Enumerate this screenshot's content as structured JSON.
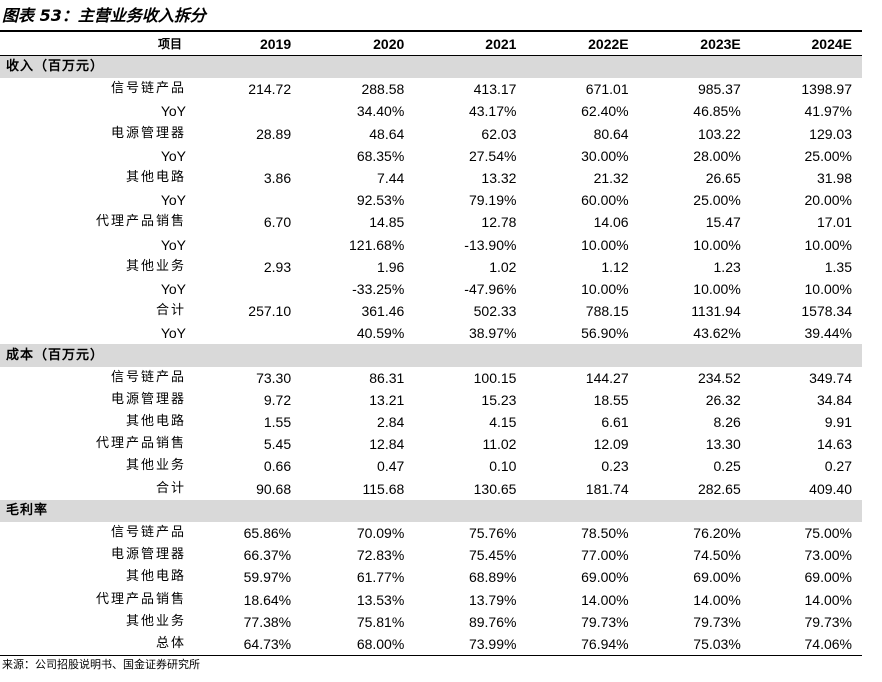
{
  "title": "图表 53：主营业务收入拆分",
  "header": [
    "项目",
    "2019",
    "2020",
    "2021",
    "2022E",
    "2023E",
    "2024E"
  ],
  "sections": [
    {
      "name": "收入（百万元）",
      "rows": [
        {
          "label": "信号链产品",
          "values": [
            "214.72",
            "288.58",
            "413.17",
            "671.01",
            "985.37",
            "1398.97"
          ]
        },
        {
          "label": "YoY",
          "values": [
            "",
            "34.40%",
            "43.17%",
            "62.40%",
            "46.85%",
            "41.97%"
          ]
        },
        {
          "label": "电源管理器",
          "values": [
            "28.89",
            "48.64",
            "62.03",
            "80.64",
            "103.22",
            "129.03"
          ]
        },
        {
          "label": "YoY",
          "values": [
            "",
            "68.35%",
            "27.54%",
            "30.00%",
            "28.00%",
            "25.00%"
          ]
        },
        {
          "label": "其他电路",
          "values": [
            "3.86",
            "7.44",
            "13.32",
            "21.32",
            "26.65",
            "31.98"
          ]
        },
        {
          "label": "YoY",
          "values": [
            "",
            "92.53%",
            "79.19%",
            "60.00%",
            "25.00%",
            "20.00%"
          ]
        },
        {
          "label": "代理产品销售",
          "values": [
            "6.70",
            "14.85",
            "12.78",
            "14.06",
            "15.47",
            "17.01"
          ]
        },
        {
          "label": "YoY",
          "values": [
            "",
            "121.68%",
            "-13.90%",
            "10.00%",
            "10.00%",
            "10.00%"
          ]
        },
        {
          "label": "其他业务",
          "values": [
            "2.93",
            "1.96",
            "1.02",
            "1.12",
            "1.23",
            "1.35"
          ]
        },
        {
          "label": "YoY",
          "values": [
            "",
            "-33.25%",
            "-47.96%",
            "10.00%",
            "10.00%",
            "10.00%"
          ]
        },
        {
          "label": "合计",
          "values": [
            "257.10",
            "361.46",
            "502.33",
            "788.15",
            "1131.94",
            "1578.34"
          ]
        },
        {
          "label": "YoY",
          "values": [
            "",
            "40.59%",
            "38.97%",
            "56.90%",
            "43.62%",
            "39.44%"
          ]
        }
      ]
    },
    {
      "name": "成本（百万元）",
      "rows": [
        {
          "label": "信号链产品",
          "values": [
            "73.30",
            "86.31",
            "100.15",
            "144.27",
            "234.52",
            "349.74"
          ]
        },
        {
          "label": "电源管理器",
          "values": [
            "9.72",
            "13.21",
            "15.23",
            "18.55",
            "26.32",
            "34.84"
          ]
        },
        {
          "label": "其他电路",
          "values": [
            "1.55",
            "2.84",
            "4.15",
            "6.61",
            "8.26",
            "9.91"
          ]
        },
        {
          "label": "代理产品销售",
          "values": [
            "5.45",
            "12.84",
            "11.02",
            "12.09",
            "13.30",
            "14.63"
          ]
        },
        {
          "label": "其他业务",
          "values": [
            "0.66",
            "0.47",
            "0.10",
            "0.23",
            "0.25",
            "0.27"
          ]
        },
        {
          "label": "合计",
          "values": [
            "90.68",
            "115.68",
            "130.65",
            "181.74",
            "282.65",
            "409.40"
          ]
        }
      ]
    },
    {
      "name": "毛利率",
      "rows": [
        {
          "label": "信号链产品",
          "values": [
            "65.86%",
            "70.09%",
            "75.76%",
            "78.50%",
            "76.20%",
            "75.00%"
          ]
        },
        {
          "label": "电源管理器",
          "values": [
            "66.37%",
            "72.83%",
            "75.45%",
            "77.00%",
            "74.50%",
            "73.00%"
          ]
        },
        {
          "label": "其他电路",
          "values": [
            "59.97%",
            "61.77%",
            "68.89%",
            "69.00%",
            "69.00%",
            "69.00%"
          ]
        },
        {
          "label": "代理产品销售",
          "values": [
            "18.64%",
            "13.53%",
            "13.79%",
            "14.00%",
            "14.00%",
            "14.00%"
          ]
        },
        {
          "label": "其他业务",
          "values": [
            "77.38%",
            "75.81%",
            "89.76%",
            "79.73%",
            "79.73%",
            "79.73%"
          ]
        },
        {
          "label": "总体",
          "values": [
            "64.73%",
            "68.00%",
            "73.99%",
            "76.94%",
            "75.03%",
            "74.06%"
          ]
        }
      ]
    }
  ],
  "source": "来源：公司招股说明书、国金证券研究所"
}
